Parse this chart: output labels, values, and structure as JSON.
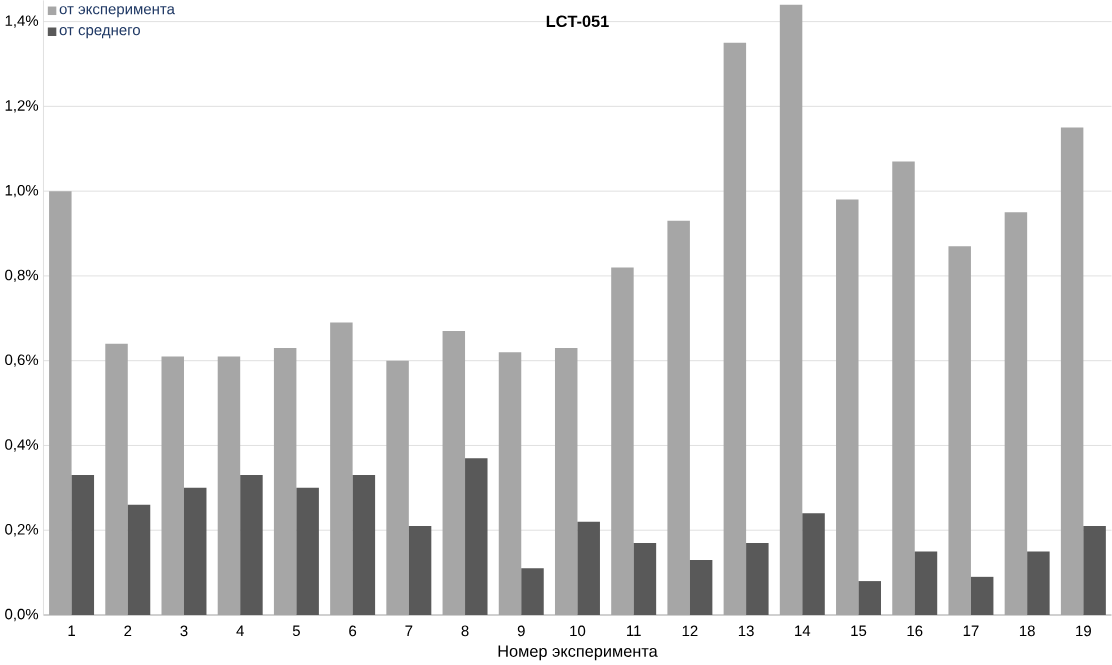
{
  "chart_data": {
    "type": "bar",
    "title": "LCT-051",
    "xlabel": "Номер эксперимента",
    "categories": [
      "1",
      "2",
      "3",
      "4",
      "5",
      "6",
      "7",
      "8",
      "9",
      "10",
      "11",
      "12",
      "13",
      "14",
      "15",
      "16",
      "17",
      "18",
      "19"
    ],
    "series": [
      {
        "name": "от эксперимента",
        "color": "#a6a6a6",
        "values": [
          1.0,
          0.64,
          0.61,
          0.61,
          0.63,
          0.69,
          0.6,
          0.67,
          0.62,
          0.63,
          0.82,
          0.93,
          1.35,
          1.44,
          0.98,
          1.07,
          0.87,
          0.95,
          1.15
        ]
      },
      {
        "name": "от среднего",
        "color": "#595959",
        "values": [
          0.33,
          0.26,
          0.3,
          0.33,
          0.3,
          0.33,
          0.21,
          0.37,
          0.11,
          0.22,
          0.17,
          0.13,
          0.17,
          0.24,
          0.08,
          0.15,
          0.09,
          0.15,
          0.21
        ]
      }
    ],
    "ylim": [
      0,
      1.45
    ],
    "yticks": [
      {
        "value": 0,
        "label": "0,0%"
      },
      {
        "value": 0.2,
        "label": "0,2%"
      },
      {
        "value": 0.4,
        "label": "0,4%"
      },
      {
        "value": 0.6,
        "label": "0,6%"
      },
      {
        "value": 0.8,
        "label": "0,8%"
      },
      {
        "value": 1.0,
        "label": "1,0%"
      },
      {
        "value": 1.2,
        "label": "1,2%"
      },
      {
        "value": 1.4,
        "label": "1,4%"
      }
    ],
    "grid": "y",
    "legend": "top left"
  }
}
